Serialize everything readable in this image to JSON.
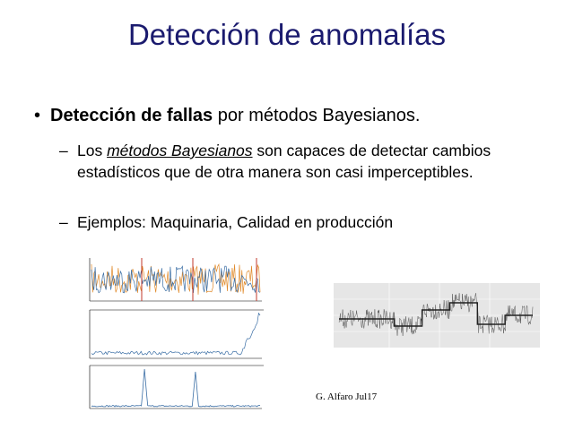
{
  "slide": {
    "title": "Detección de anomalías",
    "bullet": {
      "strong": "Detección de fallas",
      "rest": " por métodos Bayesianos."
    },
    "subbullets": [
      {
        "pre": "Los ",
        "link": "métodos Bayesianos",
        "post": " son capaces de detectar cambios estadísticos que de otra manera son casi imperceptibles."
      },
      {
        "text": "Ejemplos: Maquinaria, Calidad en producción"
      }
    ],
    "footer": "G. Alfaro Jul17"
  },
  "colors": {
    "title": "#1a1a6e",
    "series_orange": "#e08a2a",
    "series_blue": "#3a6ea5",
    "changepoint_red": "#c0392b",
    "gray_series": "#555555",
    "panel_bg": "#e6e6e6"
  }
}
